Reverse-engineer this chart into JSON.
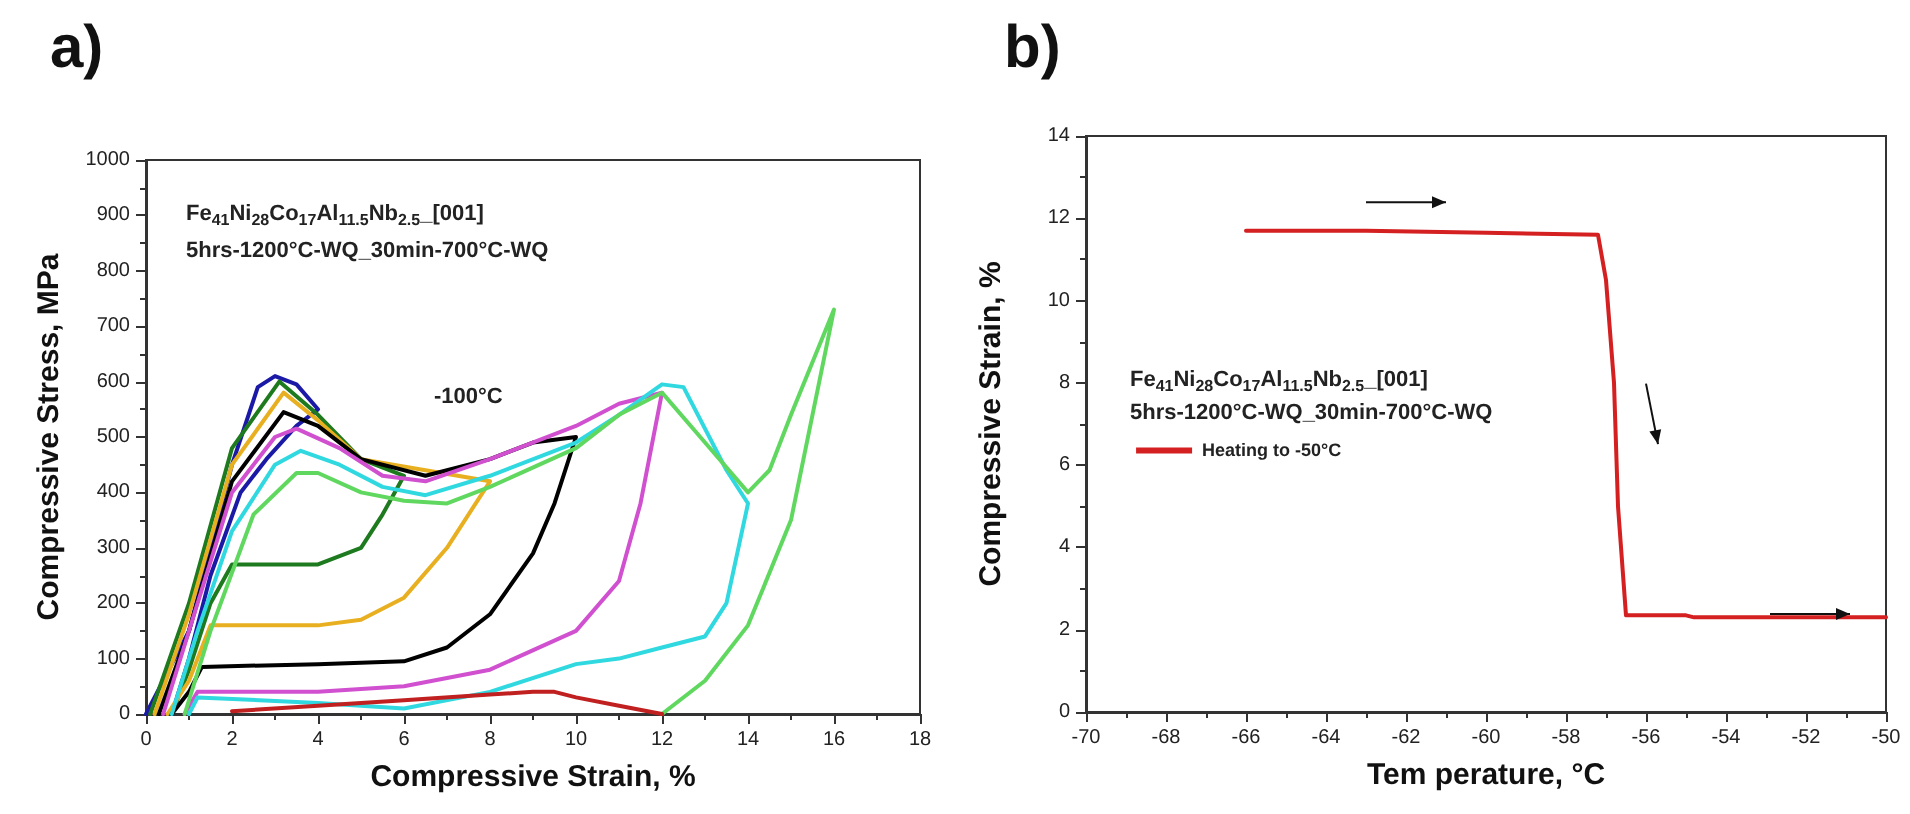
{
  "chart_data": [
    {
      "type": "line",
      "title": "a)",
      "xlabel": "Compressive Strain, %",
      "ylabel": "Compressive Stress, MPa",
      "xlim": [
        0,
        18
      ],
      "xticks": [
        0,
        2,
        4,
        6,
        8,
        10,
        12,
        14,
        16,
        18
      ],
      "ylim": [
        0,
        1000
      ],
      "yticks": [
        0,
        100,
        200,
        300,
        400,
        500,
        600,
        700,
        800,
        900,
        1000
      ],
      "grid": false,
      "marker": "none",
      "line_style": "solid",
      "annotations": [
        "Fe$_{41}$Ni$_{28}$Co$_{17}$Al$_{11.5}$Nb$_{2.5}$_[001]",
        "5hrs-1200°C-WQ_30min-700°C-WQ",
        "-100°C"
      ],
      "series": [
        {
          "color": "#1a1aa6",
          "x": [
            0,
            1,
            2,
            2.6,
            3,
            3.5,
            4,
            3.5,
            2.8,
            2.2,
            1.5,
            1,
            0.6
          ],
          "values": [
            0,
            150,
            450,
            590,
            610,
            595,
            550,
            520,
            460,
            400,
            250,
            100,
            0
          ]
        },
        {
          "color": "#1e7a1e",
          "x": [
            0.1,
            1,
            2,
            3.1,
            4,
            5,
            6,
            5.5,
            5,
            4,
            2,
            1.5,
            1,
            0.6
          ],
          "values": [
            0,
            200,
            480,
            600,
            540,
            460,
            430,
            360,
            300,
            270,
            270,
            200,
            80,
            0
          ]
        },
        {
          "color": "#e8b020",
          "x": [
            0.2,
            1,
            2,
            3.2,
            4,
            5,
            6.5,
            8,
            7,
            6,
            5,
            4,
            1.5,
            1,
            0.5
          ],
          "values": [
            0,
            180,
            450,
            580,
            530,
            460,
            440,
            420,
            300,
            210,
            170,
            160,
            160,
            60,
            0
          ]
        },
        {
          "color": "#000000",
          "x": [
            0.3,
            1,
            2,
            3.2,
            4,
            5,
            6.5,
            8,
            9,
            10,
            9.5,
            9,
            8,
            7,
            6,
            4,
            1.3,
            1,
            0.6
          ],
          "values": [
            0,
            150,
            420,
            545,
            520,
            460,
            430,
            460,
            490,
            500,
            380,
            290,
            180,
            120,
            95,
            90,
            85,
            40,
            0
          ]
        },
        {
          "color": "#d050d0",
          "x": [
            0.4,
            1,
            2,
            3,
            3.5,
            4.5,
            5.5,
            6.5,
            8,
            10,
            11,
            12,
            11.5,
            11,
            10,
            8,
            6,
            4,
            1.2,
            0.9
          ],
          "values": [
            0,
            150,
            400,
            500,
            515,
            480,
            430,
            420,
            460,
            520,
            560,
            580,
            380,
            240,
            150,
            80,
            50,
            40,
            40,
            0
          ]
        },
        {
          "color": "#30d8e0",
          "x": [
            0.6,
            1.2,
            2,
            3,
            3.6,
            4.5,
            5.5,
            6.5,
            8,
            10,
            11,
            12,
            12.5,
            13.5,
            14,
            13.5,
            13,
            12,
            11,
            10,
            8,
            6,
            4,
            1.2,
            1
          ],
          "values": [
            0,
            150,
            330,
            450,
            475,
            450,
            410,
            395,
            430,
            490,
            540,
            595,
            590,
            440,
            380,
            200,
            140,
            120,
            100,
            90,
            40,
            10,
            20,
            30,
            0
          ]
        },
        {
          "color": "#60d860",
          "x": [
            0.9,
            1.5,
            2.5,
            3.5,
            4,
            5,
            6,
            7,
            8,
            10,
            11,
            12,
            13,
            14,
            14.5,
            15,
            16,
            15,
            14,
            13,
            12
          ],
          "values": [
            0,
            150,
            360,
            435,
            435,
            400,
            385,
            380,
            410,
            480,
            540,
            580,
            490,
            400,
            440,
            540,
            730,
            350,
            160,
            60,
            0
          ]
        },
        {
          "color": "#c02020",
          "x": [
            2,
            4,
            6,
            8,
            9,
            9.5,
            10,
            11,
            12
          ],
          "values": [
            5,
            15,
            25,
            35,
            40,
            40,
            30,
            15,
            0
          ]
        }
      ]
    },
    {
      "type": "line",
      "title": "b)",
      "xlabel": "Tem perature, °C",
      "ylabel": "Compressive Strain, %",
      "xlim": [
        -70,
        -50
      ],
      "xticks": [
        -70,
        -68,
        -66,
        -64,
        -62,
        -60,
        -58,
        -56,
        -54,
        -52,
        -50
      ],
      "ylim": [
        0,
        14
      ],
      "yticks": [
        0,
        2,
        4,
        6,
        8,
        10,
        12,
        14
      ],
      "grid": false,
      "marker": "none",
      "line_style": "solid",
      "legend": "left",
      "annotations": [
        "Fe$_{41}$Ni$_{28}$Co$_{17}$Al$_{11.5}$Nb$_{2.5}$_[001]",
        "5hrs-1200°C-WQ_30min-700°C-WQ"
      ],
      "series": [
        {
          "name": "Heating to -50°C",
          "color": "#d42020",
          "x": [
            -66,
            -63,
            -60,
            -57.2,
            -57,
            -56.8,
            -56.7,
            -56.5,
            -55,
            -54.8,
            -50
          ],
          "values": [
            11.7,
            11.7,
            11.65,
            11.6,
            10.5,
            8,
            5,
            2.35,
            2.35,
            2.3,
            2.3
          ]
        }
      ]
    }
  ]
}
